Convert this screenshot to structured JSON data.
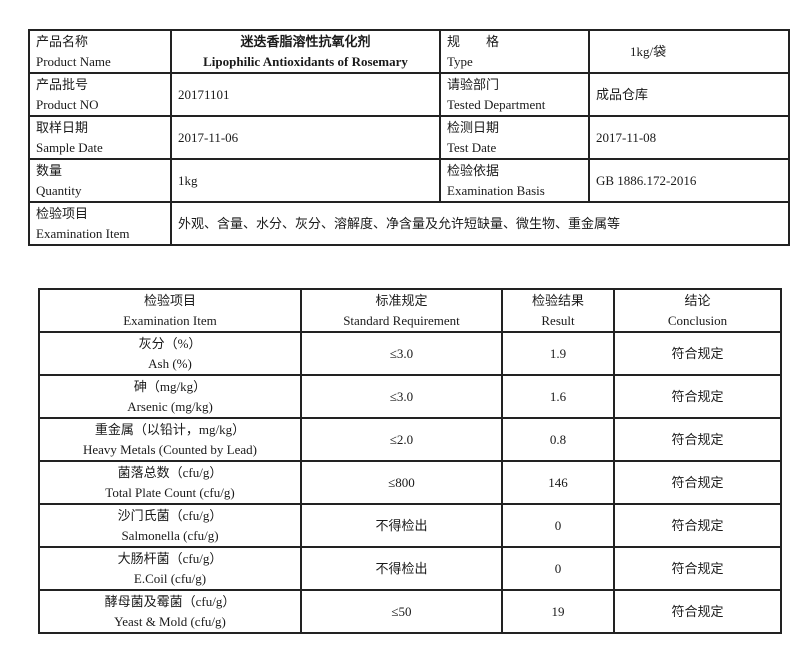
{
  "info": {
    "product_name": {
      "label_cn": "产品名称",
      "label_en": "Product Name",
      "value_cn": "迷迭香脂溶性抗氧化剂",
      "value_en": "Lipophilic Antioxidants of Rosemary"
    },
    "type": {
      "label_cn": "规　　格",
      "label_en": "Type",
      "value": "1kg/袋"
    },
    "product_no": {
      "label_cn": "产品批号",
      "label_en": "Product NO",
      "value": "20171101"
    },
    "tested_department": {
      "label_cn": "请验部门",
      "label_en": "Tested Department",
      "value": "成品仓库"
    },
    "sample_date": {
      "label_cn": "取样日期",
      "label_en": "Sample Date",
      "value": "2017-11-06"
    },
    "test_date": {
      "label_cn": "检测日期",
      "label_en": "Test Date",
      "value": "2017-11-08"
    },
    "quantity": {
      "label_cn": "数量",
      "label_en": "Quantity",
      "value": "1kg"
    },
    "examination_basis": {
      "label_cn": "检验依据",
      "label_en": "Examination Basis",
      "value": "GB 1886.172-2016"
    },
    "examination_item": {
      "label_cn": "检验项目",
      "label_en": "Examination Item",
      "value": "外观、含量、水分、灰分、溶解度、净含量及允许短缺量、微生物、重金属等"
    }
  },
  "results": {
    "headers": [
      {
        "cn": "检验项目",
        "en": "Examination Item"
      },
      {
        "cn": "标准规定",
        "en": "Standard Requirement"
      },
      {
        "cn": "检验结果",
        "en": "Result"
      },
      {
        "cn": "结论",
        "en": "Conclusion"
      }
    ],
    "rows": [
      {
        "item_cn": "灰分（%）",
        "item_en": "Ash (%)",
        "standard": "≤3.0",
        "result": "1.9",
        "conclusion": "符合规定"
      },
      {
        "item_cn": "砷（mg/kg）",
        "item_en": "Arsenic (mg/kg)",
        "standard": "≤3.0",
        "result": "1.6",
        "conclusion": "符合规定"
      },
      {
        "item_cn": "重金属（以铅计，mg/kg）",
        "item_en": "Heavy Metals (Counted by Lead)",
        "standard": "≤2.0",
        "result": "0.8",
        "conclusion": "符合规定"
      },
      {
        "item_cn": "菌落总数（cfu/g）",
        "item_en": "Total Plate Count (cfu/g)",
        "standard": "≤800",
        "result": "146",
        "conclusion": "符合规定"
      },
      {
        "item_cn": "沙门氏菌（cfu/g）",
        "item_en": "Salmonella (cfu/g)",
        "standard": "不得检出",
        "result": "0",
        "conclusion": "符合规定"
      },
      {
        "item_cn": "大肠杆菌（cfu/g）",
        "item_en": "E.Coil (cfu/g)",
        "standard": "不得检出",
        "result": "0",
        "conclusion": "符合规定"
      },
      {
        "item_cn": "酵母菌及霉菌（cfu/g）",
        "item_en": "Yeast & Mold (cfu/g)",
        "standard": "≤50",
        "result": "19",
        "conclusion": "符合规定"
      }
    ]
  }
}
